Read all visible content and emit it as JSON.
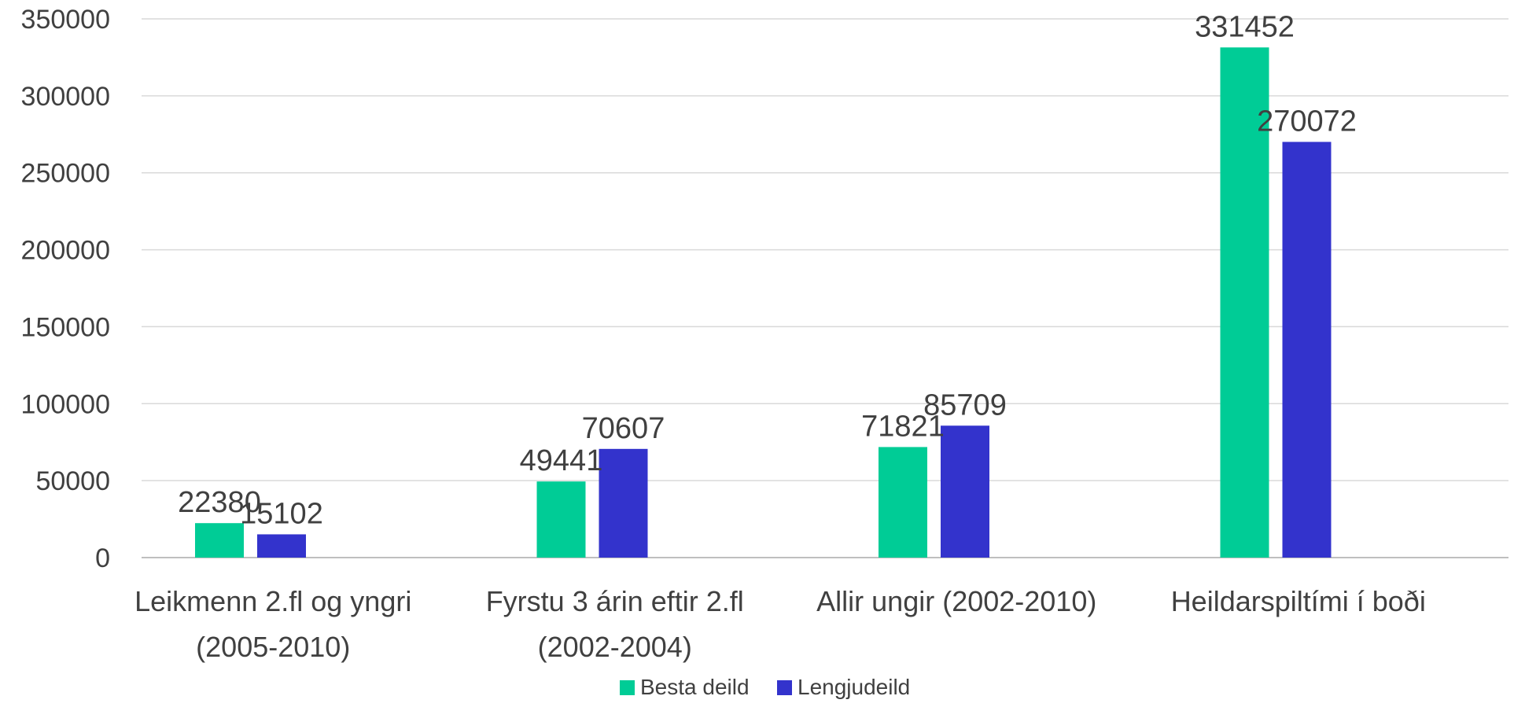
{
  "chart_data": {
    "type": "bar",
    "title": "",
    "xlabel": "",
    "ylabel": "",
    "ylim": [
      0,
      350000
    ],
    "yticks": [
      0,
      50000,
      100000,
      150000,
      200000,
      250000,
      300000,
      350000
    ],
    "grid": true,
    "legend_position": "bottom",
    "categories": [
      [
        "Leikmenn 2.fl og yngri",
        "(2005-2010)"
      ],
      [
        "Fyrstu 3 árin eftir 2.fl",
        "(2002-2004)"
      ],
      [
        "Allir ungir (2002-2010)"
      ],
      [
        "Heildarspiltími í boði"
      ]
    ],
    "series": [
      {
        "name": "Besta deild",
        "color": "#00cc96",
        "values": [
          22380,
          49441,
          71821,
          331452
        ]
      },
      {
        "name": "Lengjudeild",
        "color": "#3333cc",
        "values": [
          15102,
          70607,
          85709,
          270072
        ]
      }
    ]
  }
}
